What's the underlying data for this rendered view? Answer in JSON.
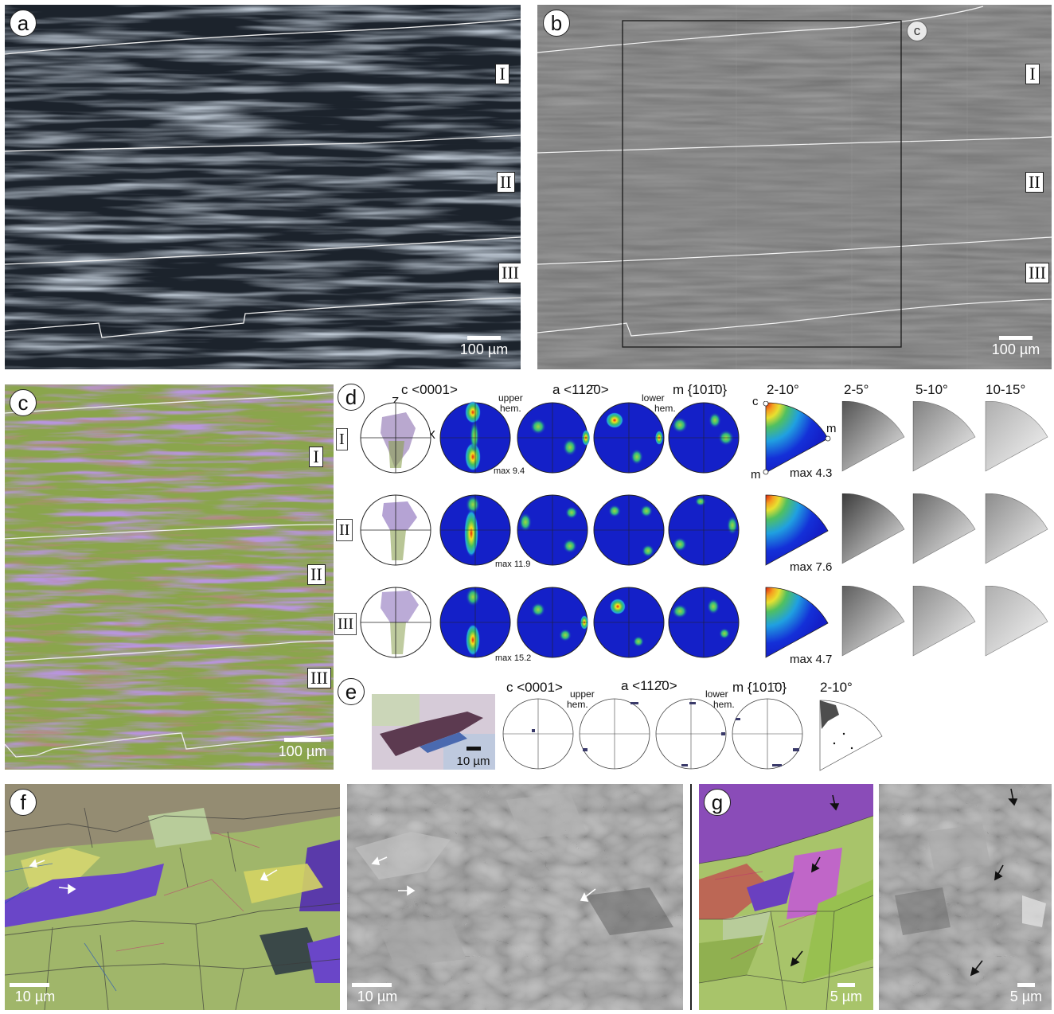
{
  "colors": {
    "jet_low": "#1420c8",
    "jet_high": "#e02010",
    "ebsd_green": "#8fb04a",
    "ebsd_purple": "#7a4fb8",
    "sem_gray": "#7b7b7b"
  },
  "panels": {
    "a": {
      "label": "a",
      "zones": [
        "I",
        "II",
        "III"
      ],
      "scale": "100 µm"
    },
    "b": {
      "label": "b",
      "inset_marker": "c",
      "zones": [
        "I",
        "II",
        "III"
      ],
      "scale": "100 µm"
    },
    "c": {
      "label": "c",
      "zones": [
        "I",
        "II",
        "III"
      ],
      "scale": "100 µm"
    },
    "d": {
      "label": "d",
      "headers": {
        "c_axis": "c <0001>",
        "a_axis": "a <11",
        "a_bar": "2̄",
        "a_end": "0>",
        "m_axis": "m {10",
        "m_bar": "1̄",
        "m_end": "0}",
        "upper": "upper",
        "upper2": "hem.",
        "lower": "lower",
        "lower2": "hem.",
        "z": "Z",
        "x": "X",
        "mis_2_10": "2-10°",
        "mis_2_5": "2-5°",
        "mis_5_10": "5-10°",
        "mis_10_15": "10-15°",
        "ipf_c": "c",
        "ipf_m1": "m",
        "ipf_m2": "m"
      },
      "rows": [
        {
          "zone": "I",
          "pf_max": "max 9.4",
          "ipf_max": "max 4.3"
        },
        {
          "zone": "II",
          "pf_max": "max 11.9",
          "ipf_max": "max 7.6"
        },
        {
          "zone": "III",
          "pf_max": "max 15.2",
          "ipf_max": "max 4.7"
        }
      ]
    },
    "e": {
      "label": "e",
      "scale": "10 µm",
      "headers": {
        "c_axis": "c <0001>",
        "a_axis": "a <11",
        "a_bar": "2̄",
        "a_end": "0>",
        "m_axis": "m {10",
        "m_bar": "1̄",
        "m_end": "0}",
        "upper": "upper",
        "upper2": "hem.",
        "lower": "lower",
        "lower2": "hem.",
        "mis": "2-10°"
      }
    },
    "f": {
      "label": "f",
      "scale_left": "10 µm",
      "scale_right": "10 µm"
    },
    "g": {
      "label": "g",
      "scale_left": "5 µm",
      "scale_right": "5 µm"
    }
  }
}
